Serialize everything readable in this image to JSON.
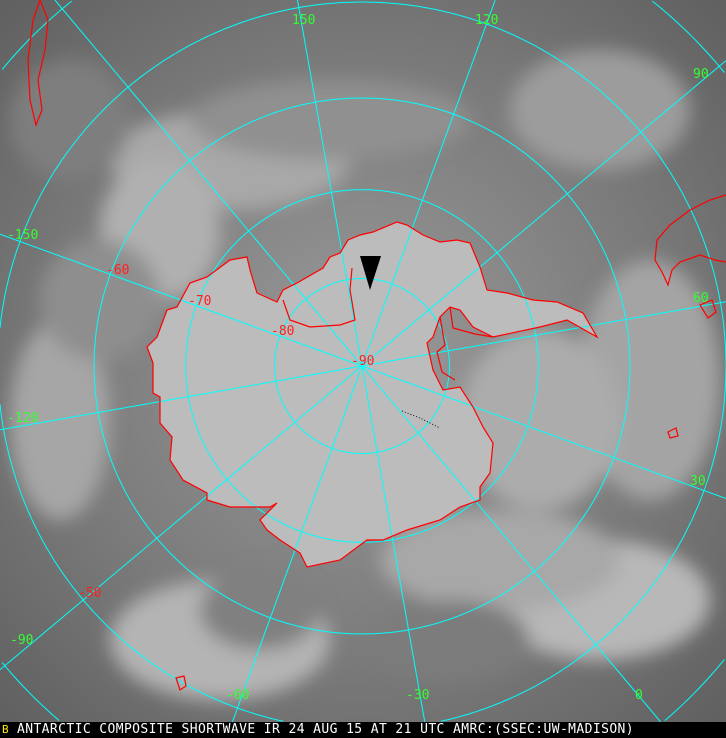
{
  "caption": "ANTARCTIC COMPOSITE SHORTWAVE IR 24 AUG 15 AT 21 UTC AMRC:(SSEC:UW-MADISON)",
  "frame_marker": "B",
  "projection": "south-polar-stereographic",
  "graticule": {
    "latitude_labels": [
      "-50",
      "-60",
      "-70",
      "-80",
      "-90"
    ],
    "latitudes": [
      -80,
      -70,
      -60,
      -50,
      -40,
      -30
    ],
    "longitude_labels": [
      "150",
      "120",
      "90",
      "60",
      "30",
      "0",
      "-30",
      "-60",
      "-90",
      "-120",
      "-150"
    ],
    "longitudes": [
      0,
      30,
      60,
      90,
      120,
      150,
      180,
      -150,
      -120,
      -90,
      -60,
      -30
    ]
  },
  "colors": {
    "graticule": "#00ffff",
    "coastline": "#ff0000",
    "latitude_label": "#ff2020",
    "longitude_label": "#33ff33",
    "caption_text": "#ffffff",
    "frame_marker": "#ffee00"
  }
}
